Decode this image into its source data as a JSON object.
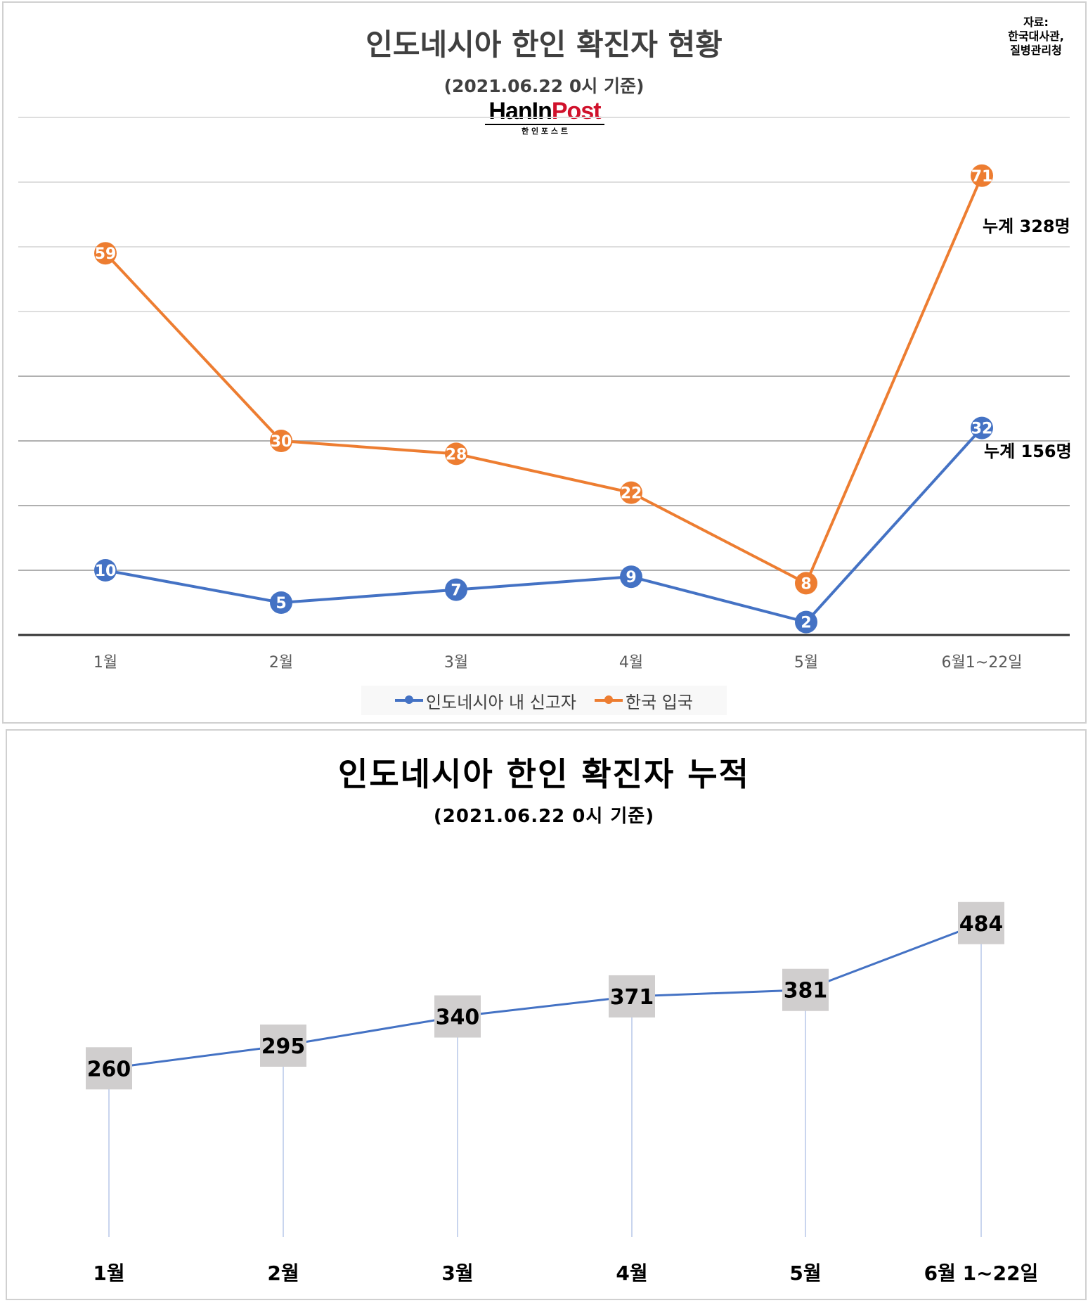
{
  "chart_data": [
    {
      "type": "line",
      "title": "인도네시아 한인 확진자 현황",
      "subtitle": "(2021.06.22 0시 기준)",
      "source": "자료:\n한국대사관,\n질병관리청",
      "logo": {
        "text": "HanInPost",
        "subtext": "한 인 포 스 트"
      },
      "categories": [
        "1월",
        "2월",
        "3월",
        "4월",
        "5월",
        "6월1~22일"
      ],
      "series": [
        {
          "name": "인도네시아 내 신고자",
          "color": "#4472C4",
          "values": [
            10,
            5,
            7,
            9,
            2,
            32
          ],
          "total_label": "누계 156명"
        },
        {
          "name": "한국 입국",
          "color": "#ED7D31",
          "values": [
            59,
            30,
            28,
            22,
            8,
            71
          ],
          "total_label": "누계 328명"
        }
      ],
      "ylim": [
        0,
        80
      ],
      "grid": true,
      "legend": "bottom",
      "xlabel": "",
      "ylabel": ""
    },
    {
      "type": "line",
      "title": "인도네시아 한인 확진자 누적",
      "subtitle": "(2021.06.22 0시 기준)",
      "categories": [
        "1월",
        "2월",
        "3월",
        "4월",
        "5월",
        "6월 1~22일"
      ],
      "series": [
        {
          "color": "#4472C4",
          "values": [
            260,
            295,
            340,
            371,
            381,
            484
          ]
        }
      ],
      "ylim": [
        0,
        484
      ],
      "grid": false,
      "drop_lines": true,
      "xlabel": "",
      "ylabel": ""
    }
  ]
}
